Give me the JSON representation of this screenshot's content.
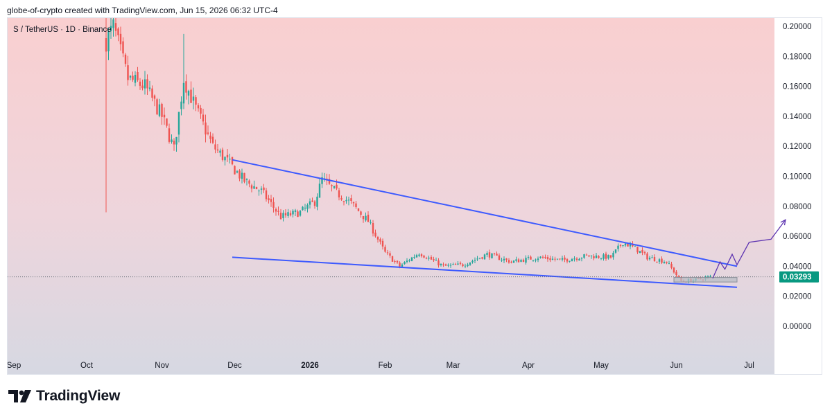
{
  "header": {
    "caption": "globe-of-crypto created with TradingView.com, Jun 15, 2026 06:32 UTC-4"
  },
  "symbol_label": "S / TetherUS · 1D · Binance",
  "footer": {
    "logo_text": "TradingView"
  },
  "colors": {
    "bull": "#26a69a",
    "bear": "#ef5350",
    "wedge_line": "#3d5afe",
    "projection": "#5e35b1",
    "bg_top": "#f9cfd0",
    "bg_bottom": "#d6d8e2",
    "price_tag": "#089981"
  },
  "chart_data": {
    "type": "candlestick",
    "ylim": [
      -0.012,
      0.205
    ],
    "y_ticks": [
      "0.20000",
      "0.18000",
      "0.16000",
      "0.14000",
      "0.12000",
      "0.10000",
      "0.08000",
      "0.06000",
      "0.04000",
      "0.02000",
      "0.00000"
    ],
    "x_ticks": [
      "Sep",
      "Oct",
      "Nov",
      "Dec",
      "2026",
      "Feb",
      "Mar",
      "Apr",
      "May",
      "Jun",
      "Jul"
    ],
    "current_price": "0.03293",
    "close_points": [
      [
        "2025-10-09",
        0.19
      ],
      [
        "2025-10-12",
        0.2
      ],
      [
        "2025-10-18",
        0.165
      ],
      [
        "2025-10-25",
        0.16
      ],
      [
        "2025-11-01",
        0.14
      ],
      [
        "2025-11-06",
        0.118
      ],
      [
        "2025-11-10",
        0.165
      ],
      [
        "2025-11-15",
        0.145
      ],
      [
        "2025-11-22",
        0.12
      ],
      [
        "2025-11-28",
        0.11
      ],
      [
        "2025-12-05",
        0.097
      ],
      [
        "2025-12-12",
        0.09
      ],
      [
        "2025-12-20",
        0.073
      ],
      [
        "2025-12-28",
        0.076
      ],
      [
        "2026-01-03",
        0.083
      ],
      [
        "2026-01-06",
        0.098
      ],
      [
        "2026-01-12",
        0.089
      ],
      [
        "2026-01-18",
        0.082
      ],
      [
        "2026-01-25",
        0.07
      ],
      [
        "2026-02-01",
        0.049
      ],
      [
        "2026-02-07",
        0.04
      ],
      [
        "2026-02-15",
        0.049
      ],
      [
        "2026-02-25",
        0.04
      ],
      [
        "2026-03-05",
        0.041
      ],
      [
        "2026-03-15",
        0.048
      ],
      [
        "2026-03-25",
        0.043
      ],
      [
        "2026-04-05",
        0.046
      ],
      [
        "2026-04-15",
        0.044
      ],
      [
        "2026-04-25",
        0.047
      ],
      [
        "2026-05-05",
        0.046
      ],
      [
        "2026-05-10",
        0.056
      ],
      [
        "2026-05-15",
        0.052
      ],
      [
        "2026-05-20",
        0.046
      ],
      [
        "2026-05-28",
        0.043
      ],
      [
        "2026-06-03",
        0.03
      ],
      [
        "2026-06-09",
        0.031
      ],
      [
        "2026-06-15",
        0.03293
      ]
    ],
    "wedge_upper": [
      [
        "2025-11-30",
        0.111
      ],
      [
        "2026-06-26",
        0.04
      ]
    ],
    "wedge_lower": [
      [
        "2025-11-30",
        0.046
      ],
      [
        "2026-06-26",
        0.026
      ]
    ],
    "projection": [
      [
        "2026-06-16",
        0.032
      ],
      [
        "2026-06-19",
        0.043
      ],
      [
        "2026-06-21",
        0.038
      ],
      [
        "2026-06-24",
        0.048
      ],
      [
        "2026-06-26",
        0.041
      ],
      [
        "2026-07-01",
        0.056
      ],
      [
        "2026-07-10",
        0.058
      ],
      [
        "2026-07-16",
        0.071
      ]
    ],
    "range_box": {
      "x": [
        "2026-05-31",
        "2026-06-26"
      ],
      "y": [
        0.0295,
        0.0325
      ]
    }
  }
}
